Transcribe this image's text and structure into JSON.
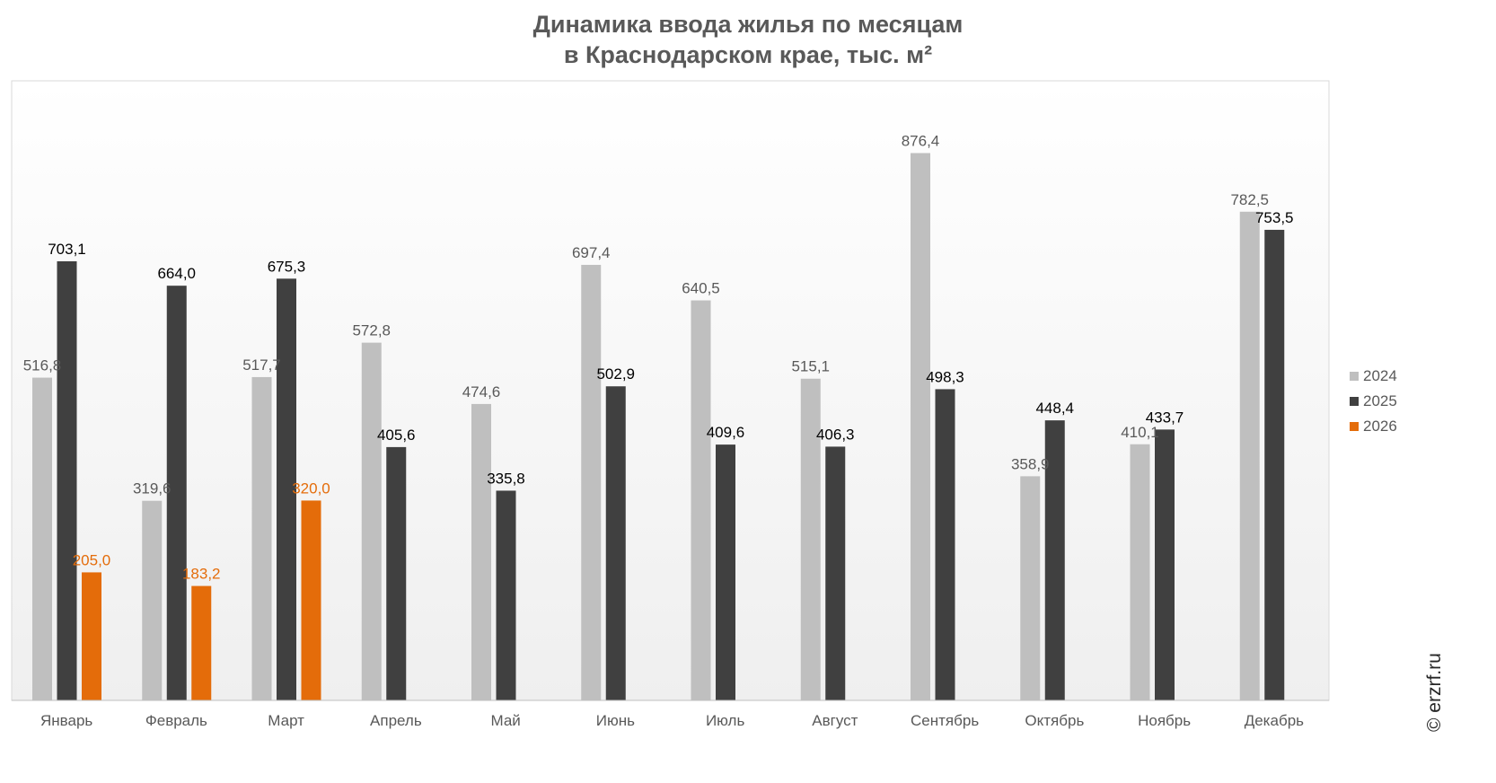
{
  "title_line1": "Динамика ввода жилья по месяцам",
  "title_line2": "в Краснодарском крае, тыс. м²",
  "credit": "© erzrf.ru",
  "chart_data": {
    "type": "bar",
    "title": "Динамика ввода жилья по месяцам в Краснодарском крае, тыс. м²",
    "categories": [
      "Январь",
      "Февраль",
      "Март",
      "Апрель",
      "Май",
      "Июнь",
      "Июль",
      "Август",
      "Сентябрь",
      "Октябрь",
      "Ноябрь",
      "Декабрь"
    ],
    "series": [
      {
        "name": "2024",
        "color": "#bfbfbf",
        "label_color": "#595959",
        "values": [
          516.8,
          319.6,
          517.7,
          572.8,
          474.6,
          697.4,
          640.5,
          515.1,
          876.4,
          358.9,
          410.1,
          782.5
        ],
        "labels": [
          "516,8",
          "319,6",
          "517,7",
          "572,8",
          "474,6",
          "697,4",
          "640,5",
          "515,1",
          "876,4",
          "358,9",
          "410,1",
          "782,5"
        ]
      },
      {
        "name": "2025",
        "color": "#404040",
        "label_color": "#000000",
        "values": [
          703.1,
          664.0,
          675.3,
          405.6,
          335.8,
          502.9,
          409.6,
          406.3,
          498.3,
          448.4,
          433.7,
          753.5
        ],
        "labels": [
          "703,1",
          "664,0",
          "675,3",
          "405,6",
          "335,8",
          "502,9",
          "409,6",
          "406,3",
          "498,3",
          "448,4",
          "433,7",
          "753,5"
        ]
      },
      {
        "name": "2026",
        "color": "#e46c0a",
        "label_color": "#e46c0a",
        "values": [
          205.0,
          183.2,
          320.0,
          null,
          null,
          null,
          null,
          null,
          null,
          null,
          null,
          null
        ],
        "labels": [
          "205,0",
          "183,2",
          "320,0",
          "",
          "",
          "",
          "",
          "",
          "",
          "",
          "",
          ""
        ]
      }
    ],
    "ylim": [
      0,
      1000
    ],
    "grid": false,
    "legend_position": "right"
  }
}
